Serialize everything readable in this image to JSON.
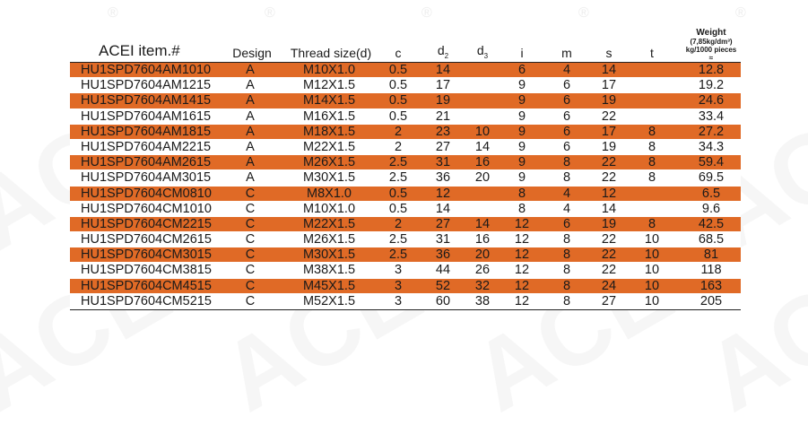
{
  "header": {
    "item": "ACEI item.#",
    "design": "Design",
    "thread": "Thread size(d)",
    "c": "c",
    "d2_base": "d",
    "d2_sub": "2",
    "d3_base": "d",
    "d3_sub": "3",
    "i": "i",
    "m": "m",
    "s": "s",
    "t": "t",
    "weight_line1": "Weight",
    "weight_line2": "(7,85kg/dm³)",
    "weight_line3": "kg/1000 pieces",
    "weight_line4": "≈"
  },
  "watermark": {
    "text": "ACEI",
    "reg_mark": "®"
  },
  "colors": {
    "row_shaded": "#e06a26",
    "row_plain": "#ffffff"
  },
  "rows": [
    {
      "item": "HU1SPD7604AM1010",
      "design": "A",
      "thread": "M10X1.0",
      "c": "0.5",
      "d2": "14",
      "d3": "",
      "i": "6",
      "m": "4",
      "s": "14",
      "t": "",
      "weight": "12.8"
    },
    {
      "item": "HU1SPD7604AM1215",
      "design": "A",
      "thread": "M12X1.5",
      "c": "0.5",
      "d2": "17",
      "d3": "",
      "i": "9",
      "m": "6",
      "s": "17",
      "t": "",
      "weight": "19.2"
    },
    {
      "item": "HU1SPD7604AM1415",
      "design": "A",
      "thread": "M14X1.5",
      "c": "0.5",
      "d2": "19",
      "d3": "",
      "i": "9",
      "m": "6",
      "s": "19",
      "t": "",
      "weight": "24.6"
    },
    {
      "item": "HU1SPD7604AM1615",
      "design": "A",
      "thread": "M16X1.5",
      "c": "0.5",
      "d2": "21",
      "d3": "",
      "i": "9",
      "m": "6",
      "s": "22",
      "t": "",
      "weight": "33.4"
    },
    {
      "item": "HU1SPD7604AM1815",
      "design": "A",
      "thread": "M18X1.5",
      "c": "2",
      "d2": "23",
      "d3": "10",
      "i": "9",
      "m": "6",
      "s": "17",
      "t": "8",
      "weight": "27.2"
    },
    {
      "item": "HU1SPD7604AM2215",
      "design": "A",
      "thread": "M22X1.5",
      "c": "2",
      "d2": "27",
      "d3": "14",
      "i": "9",
      "m": "6",
      "s": "19",
      "t": "8",
      "weight": "34.3"
    },
    {
      "item": "HU1SPD7604AM2615",
      "design": "A",
      "thread": "M26X1.5",
      "c": "2.5",
      "d2": "31",
      "d3": "16",
      "i": "9",
      "m": "8",
      "s": "22",
      "t": "8",
      "weight": "59.4"
    },
    {
      "item": "HU1SPD7604AM3015",
      "design": "A",
      "thread": "M30X1.5",
      "c": "2.5",
      "d2": "36",
      "d3": "20",
      "i": "9",
      "m": "8",
      "s": "22",
      "t": "8",
      "weight": "69.5"
    },
    {
      "item": "HU1SPD7604CM0810",
      "design": "C",
      "thread": "M8X1.0",
      "c": "0.5",
      "d2": "12",
      "d3": "",
      "i": "8",
      "m": "4",
      "s": "12",
      "t": "",
      "weight": "6.5"
    },
    {
      "item": "HU1SPD7604CM1010",
      "design": "C",
      "thread": "M10X1.0",
      "c": "0.5",
      "d2": "14",
      "d3": "",
      "i": "8",
      "m": "4",
      "s": "14",
      "t": "",
      "weight": "9.6"
    },
    {
      "item": "HU1SPD7604CM2215",
      "design": "C",
      "thread": "M22X1.5",
      "c": "2",
      "d2": "27",
      "d3": "14",
      "i": "12",
      "m": "6",
      "s": "19",
      "t": "8",
      "weight": "42.5"
    },
    {
      "item": "HU1SPD7604CM2615",
      "design": "C",
      "thread": "M26X1.5",
      "c": "2.5",
      "d2": "31",
      "d3": "16",
      "i": "12",
      "m": "8",
      "s": "22",
      "t": "10",
      "weight": "68.5"
    },
    {
      "item": "HU1SPD7604CM3015",
      "design": "C",
      "thread": "M30X1.5",
      "c": "2.5",
      "d2": "36",
      "d3": "20",
      "i": "12",
      "m": "8",
      "s": "22",
      "t": "10",
      "weight": "81"
    },
    {
      "item": "HU1SPD7604CM3815",
      "design": "C",
      "thread": "M38X1.5",
      "c": "3",
      "d2": "44",
      "d3": "26",
      "i": "12",
      "m": "8",
      "s": "22",
      "t": "10",
      "weight": "118"
    },
    {
      "item": "HU1SPD7604CM4515",
      "design": "C",
      "thread": "M45X1.5",
      "c": "3",
      "d2": "52",
      "d3": "32",
      "i": "12",
      "m": "8",
      "s": "24",
      "t": "10",
      "weight": "163"
    },
    {
      "item": "HU1SPD7604CM5215",
      "design": "C",
      "thread": "M52X1.5",
      "c": "3",
      "d2": "60",
      "d3": "38",
      "i": "12",
      "m": "8",
      "s": "27",
      "t": "10",
      "weight": "205"
    }
  ]
}
